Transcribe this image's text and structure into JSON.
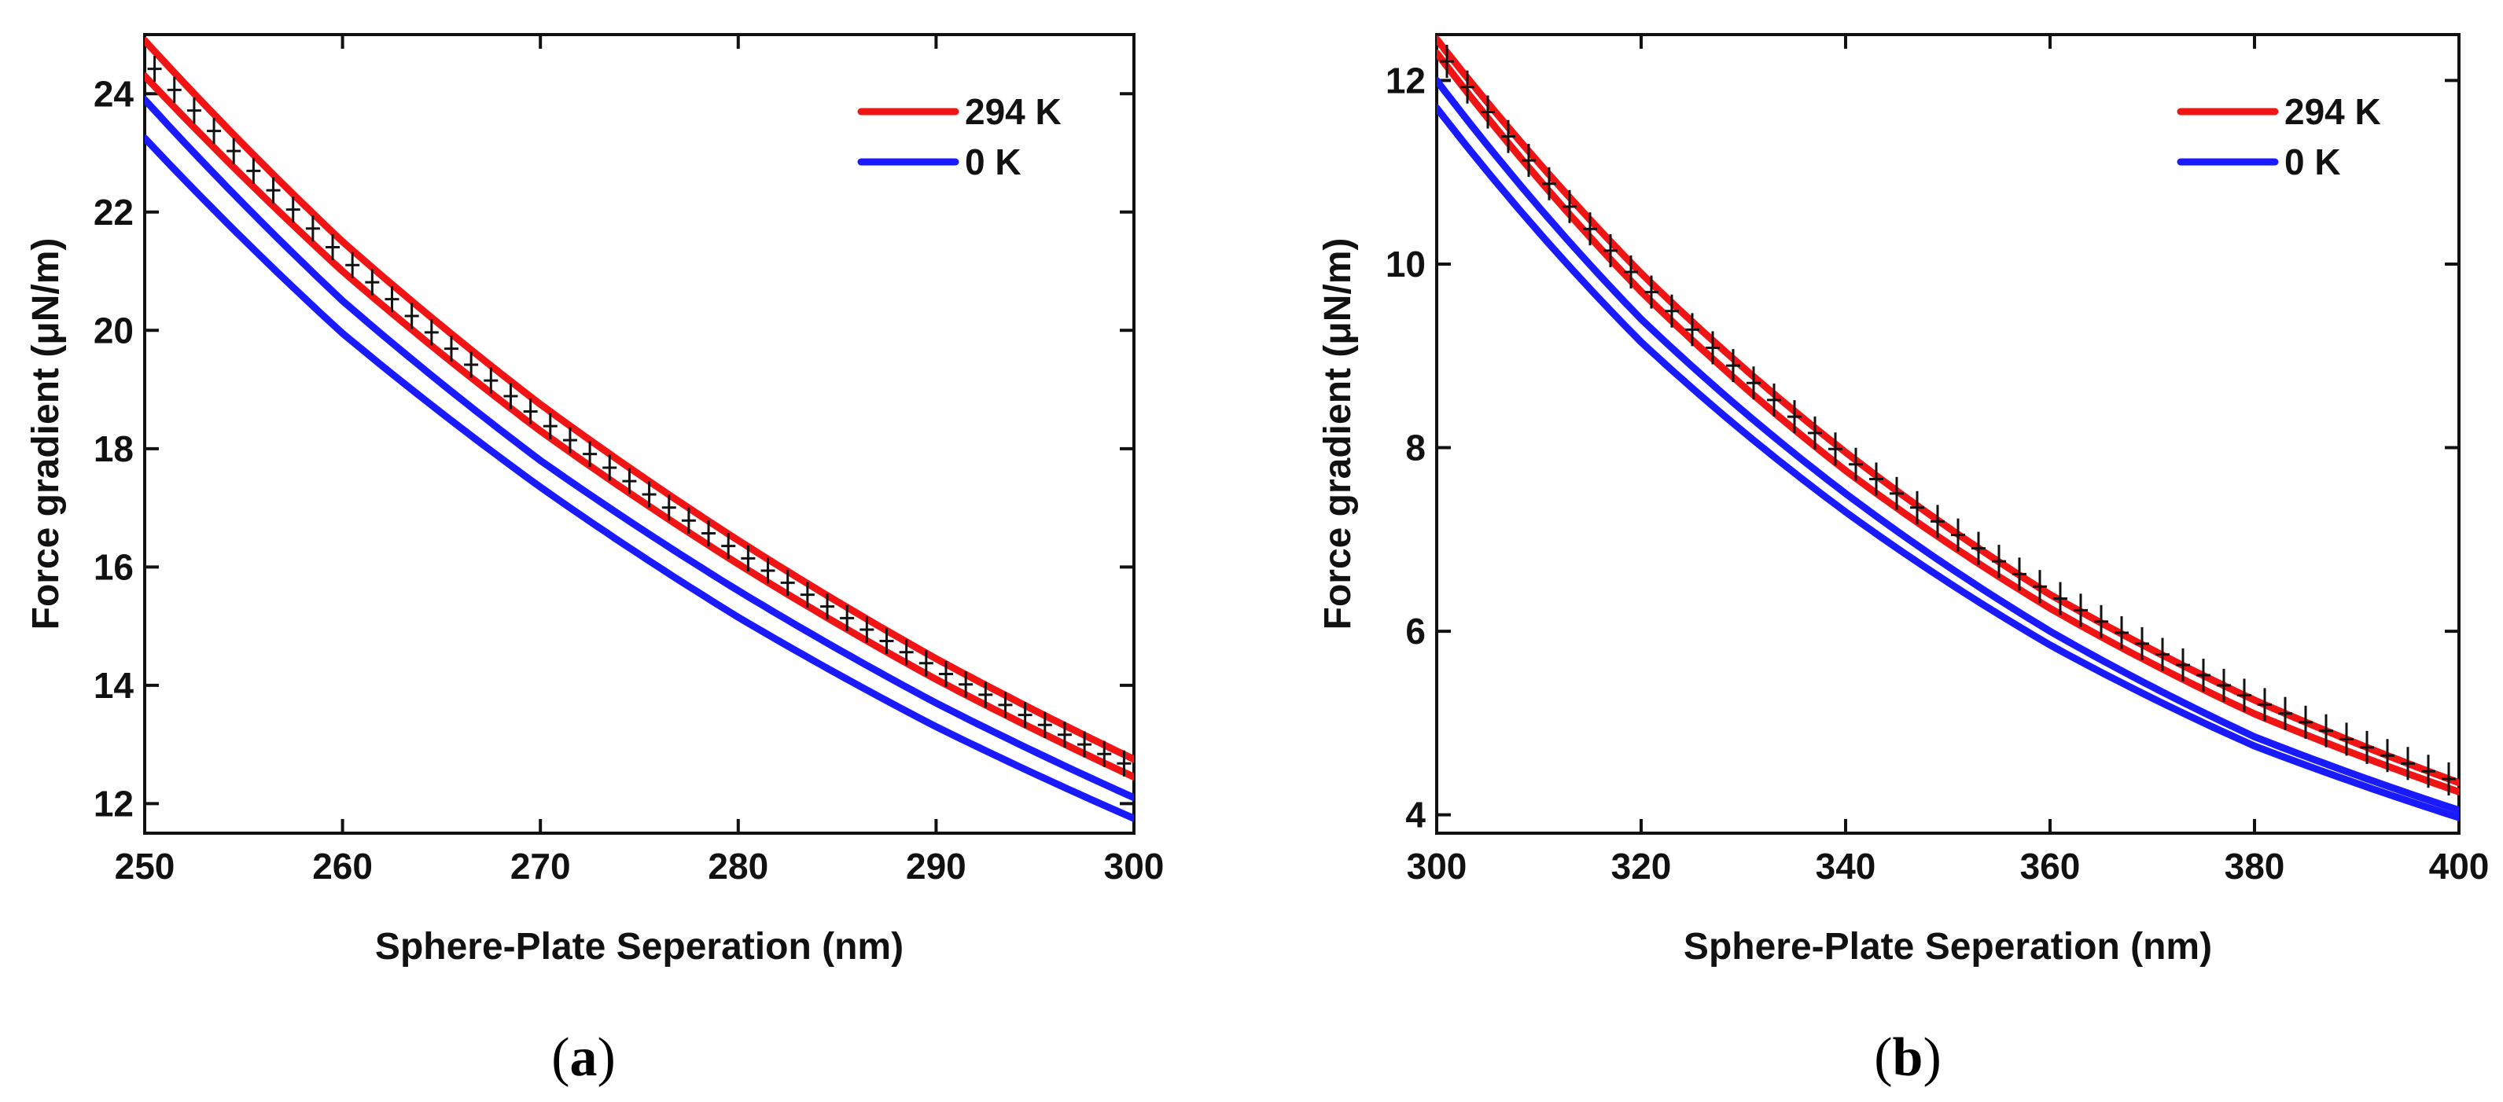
{
  "figure": {
    "panel_a": {
      "open": "(",
      "letter": "a",
      "close": ")"
    },
    "panel_b": {
      "open": "(",
      "letter": "b",
      "close": ")"
    }
  },
  "colors": {
    "red": "#f01414",
    "blue": "#1a1aff",
    "black": "#111111"
  },
  "chart_data": [
    {
      "id": "a",
      "type": "line",
      "title": "",
      "xlabel": "Sphere-Plate Seperation (nm)",
      "ylabel": "Force gradient (μN/m)",
      "xlim": [
        250,
        300
      ],
      "ylim": [
        11.5,
        25
      ],
      "xticks": [
        250,
        260,
        270,
        280,
        290,
        300
      ],
      "yticks": [
        12,
        14,
        16,
        18,
        20,
        22,
        24
      ],
      "legend": {
        "position": "top-right",
        "entries": [
          {
            "label": "294 K",
            "color": "#f01414"
          },
          {
            "label": "0 K",
            "color": "#1a1aff"
          }
        ]
      },
      "series": [
        {
          "name": "294 K upper",
          "color": "#f01414",
          "x": [
            250,
            260,
            270,
            280,
            290,
            300
          ],
          "y": [
            24.9,
            21.5,
            18.75,
            16.45,
            14.45,
            12.75
          ]
        },
        {
          "name": "294 K lower",
          "color": "#f01414",
          "x": [
            250,
            260,
            270,
            280,
            290,
            300
          ],
          "y": [
            24.3,
            21.0,
            18.3,
            16.05,
            14.1,
            12.45
          ]
        },
        {
          "name": "0 K upper",
          "color": "#1a1aff",
          "x": [
            250,
            260,
            270,
            280,
            290,
            300
          ],
          "y": [
            23.9,
            20.5,
            17.8,
            15.6,
            13.7,
            12.1
          ]
        },
        {
          "name": "0 K lower",
          "color": "#1a1aff",
          "x": [
            250,
            260,
            270,
            280,
            290,
            300
          ],
          "y": [
            23.25,
            19.95,
            17.35,
            15.15,
            13.3,
            11.75
          ]
        }
      ],
      "measured": {
        "name": "experimental data",
        "x_start": 250.5,
        "x_end": 299.5,
        "count": 50,
        "err": 0.22,
        "anchor_x": [
          250,
          260,
          270,
          280,
          290,
          300
        ],
        "anchor_y": [
          24.6,
          21.25,
          18.5,
          16.25,
          14.28,
          12.6
        ]
      }
    },
    {
      "id": "b",
      "type": "line",
      "title": "",
      "xlabel": "Sphere-Plate Seperation (nm)",
      "ylabel": "Force gradient (μN/m)",
      "xlim": [
        300,
        400
      ],
      "ylim": [
        3.8,
        12.5
      ],
      "xticks": [
        300,
        320,
        340,
        360,
        380,
        400
      ],
      "yticks": [
        4,
        6,
        8,
        10,
        12
      ],
      "legend": {
        "position": "top-right",
        "entries": [
          {
            "label": "294 K",
            "color": "#f01414"
          },
          {
            "label": "0 K",
            "color": "#1a1aff"
          }
        ]
      },
      "series": [
        {
          "name": "294 K upper",
          "color": "#f01414",
          "x": [
            300,
            320,
            340,
            360,
            380,
            400
          ],
          "y": [
            12.45,
            9.9,
            7.95,
            6.4,
            5.25,
            4.35
          ]
        },
        {
          "name": "294 K lower",
          "color": "#f01414",
          "x": [
            300,
            320,
            340,
            360,
            380,
            400
          ],
          "y": [
            12.3,
            9.7,
            7.75,
            6.25,
            5.1,
            4.25
          ]
        },
        {
          "name": "0 K upper",
          "color": "#1a1aff",
          "x": [
            300,
            320,
            340,
            360,
            380,
            400
          ],
          "y": [
            12.0,
            9.4,
            7.5,
            6.0,
            4.85,
            4.05
          ]
        },
        {
          "name": "0 K lower",
          "color": "#1a1aff",
          "x": [
            300,
            320,
            340,
            360,
            380,
            400
          ],
          "y": [
            11.7,
            9.15,
            7.3,
            5.85,
            4.75,
            3.97
          ]
        }
      ],
      "measured": {
        "name": "experimental data",
        "x_start": 301,
        "x_end": 399,
        "count": 50,
        "err": 0.18,
        "anchor_x": [
          300,
          320,
          340,
          360,
          380,
          400
        ],
        "anchor_y": [
          12.35,
          9.8,
          7.9,
          6.42,
          5.25,
          4.35
        ]
      }
    }
  ]
}
